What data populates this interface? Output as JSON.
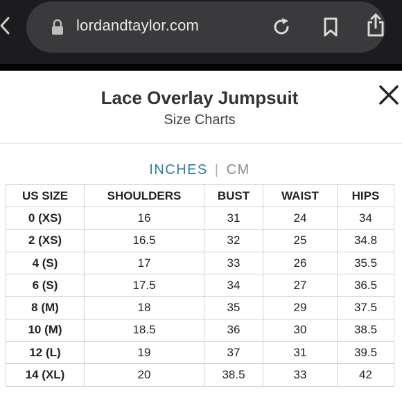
{
  "browser": {
    "url": "lordandtaylor.com"
  },
  "header": {
    "title": "Lace Overlay Jumpsuit",
    "subtitle": "Size Charts"
  },
  "units": {
    "active": "INCHES",
    "separator": "|",
    "inactive": "CM"
  },
  "table": {
    "headers": [
      "US SIZE",
      "SHOULDERS",
      "BUST",
      "WAIST",
      "HIPS"
    ],
    "rows": [
      [
        "0 (XS)",
        "16",
        "31",
        "24",
        "34"
      ],
      [
        "2 (XS)",
        "16.5",
        "32",
        "25",
        "34.8"
      ],
      [
        "4 (S)",
        "17",
        "33",
        "26",
        "35.5"
      ],
      [
        "6 (S)",
        "17.5",
        "34",
        "27",
        "36.5"
      ],
      [
        "8 (M)",
        "18",
        "35",
        "29",
        "37.5"
      ],
      [
        "10 (M)",
        "18.5",
        "36",
        "30",
        "38.5"
      ],
      [
        "12 (L)",
        "19",
        "37",
        "31",
        "39.5"
      ],
      [
        "14 (XL)",
        "20",
        "38.5",
        "33",
        "42"
      ]
    ]
  },
  "icons": {
    "back": "chevron-left-icon",
    "lock": "lock-icon",
    "reload": "reload-icon",
    "bookmark": "bookmark-icon",
    "share": "share-icon",
    "close": "close-icon"
  },
  "colors": {
    "browser_bg": "#1c1c1e",
    "url_pill": "#3a3a3c",
    "active_unit": "#2a7fa8",
    "inactive_unit": "#8a8a8a"
  }
}
